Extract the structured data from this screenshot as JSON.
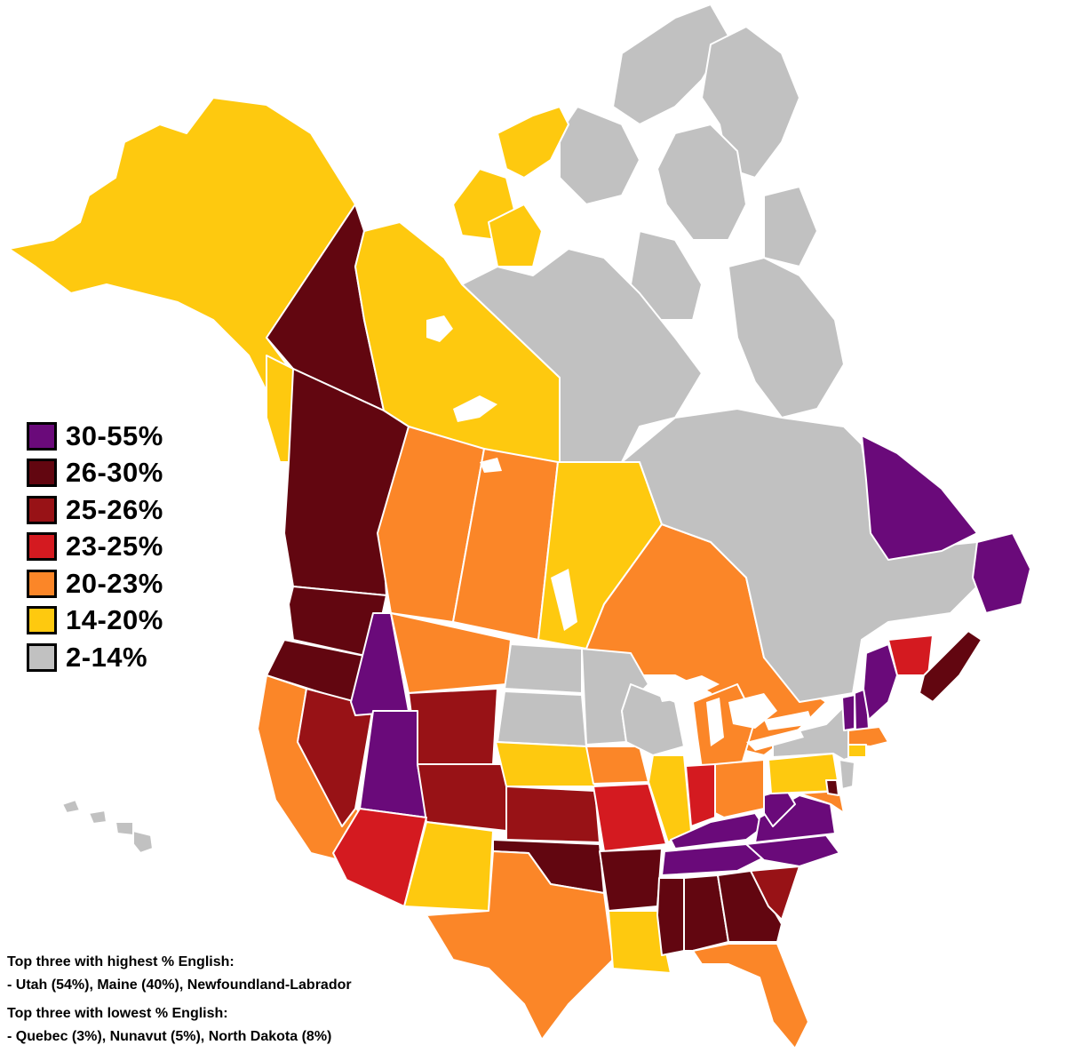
{
  "legend": {
    "items": [
      {
        "label": "30-55%",
        "color": "#6a0a7a"
      },
      {
        "label": "26-30%",
        "color": "#620610"
      },
      {
        "label": "25-26%",
        "color": "#981216"
      },
      {
        "label": "23-25%",
        "color": "#d41a20"
      },
      {
        "label": "20-23%",
        "color": "#fb8628"
      },
      {
        "label": "14-20%",
        "color": "#fec90f"
      },
      {
        "label": "2-14%",
        "color": "#c1c1c1"
      }
    ]
  },
  "notes": {
    "highest_heading": "Top three with highest % English:",
    "highest_list": "- Utah (54%), Maine (40%), Newfoundland-Labrador",
    "lowest_heading": "Top three with lowest % English:",
    "lowest_list": "- Quebec (3%), Nunavut (5%), North Dakota (8%)"
  },
  "regions": [
    {
      "name": "Alaska",
      "bin": "14-20%"
    },
    {
      "name": "Yukon",
      "bin": "26-30%"
    },
    {
      "name": "Northwest Territories",
      "bin": "14-20%"
    },
    {
      "name": "Nunavut",
      "bin": "2-14%"
    },
    {
      "name": "British Columbia",
      "bin": "26-30%"
    },
    {
      "name": "Alberta",
      "bin": "20-23%"
    },
    {
      "name": "Saskatchewan",
      "bin": "20-23%"
    },
    {
      "name": "Manitoba",
      "bin": "14-20%"
    },
    {
      "name": "Ontario",
      "bin": "20-23%"
    },
    {
      "name": "Quebec",
      "bin": "2-14%"
    },
    {
      "name": "Newfoundland and Labrador",
      "bin": "30-55%"
    },
    {
      "name": "New Brunswick",
      "bin": "23-25%"
    },
    {
      "name": "Nova Scotia",
      "bin": "26-30%"
    },
    {
      "name": "Washington",
      "bin": "26-30%"
    },
    {
      "name": "Oregon",
      "bin": "26-30%"
    },
    {
      "name": "California",
      "bin": "20-23%"
    },
    {
      "name": "Nevada",
      "bin": "25-26%"
    },
    {
      "name": "Idaho",
      "bin": "30-55%"
    },
    {
      "name": "Montana",
      "bin": "20-23%"
    },
    {
      "name": "Wyoming",
      "bin": "25-26%"
    },
    {
      "name": "Utah",
      "bin": "30-55%"
    },
    {
      "name": "Arizona",
      "bin": "23-25%"
    },
    {
      "name": "Colorado",
      "bin": "25-26%"
    },
    {
      "name": "New Mexico",
      "bin": "14-20%"
    },
    {
      "name": "North Dakota",
      "bin": "2-14%"
    },
    {
      "name": "South Dakota",
      "bin": "2-14%"
    },
    {
      "name": "Nebraska",
      "bin": "14-20%"
    },
    {
      "name": "Kansas",
      "bin": "25-26%"
    },
    {
      "name": "Oklahoma",
      "bin": "26-30%"
    },
    {
      "name": "Texas",
      "bin": "20-23%"
    },
    {
      "name": "Minnesota",
      "bin": "2-14%"
    },
    {
      "name": "Iowa",
      "bin": "20-23%"
    },
    {
      "name": "Missouri",
      "bin": "23-25%"
    },
    {
      "name": "Arkansas",
      "bin": "26-30%"
    },
    {
      "name": "Louisiana",
      "bin": "14-20%"
    },
    {
      "name": "Wisconsin",
      "bin": "2-14%"
    },
    {
      "name": "Illinois",
      "bin": "14-20%"
    },
    {
      "name": "Michigan",
      "bin": "20-23%"
    },
    {
      "name": "Indiana",
      "bin": "23-25%"
    },
    {
      "name": "Ohio",
      "bin": "20-23%"
    },
    {
      "name": "Kentucky",
      "bin": "30-55%"
    },
    {
      "name": "Tennessee",
      "bin": "30-55%"
    },
    {
      "name": "Mississippi",
      "bin": "26-30%"
    },
    {
      "name": "Alabama",
      "bin": "26-30%"
    },
    {
      "name": "Georgia",
      "bin": "26-30%"
    },
    {
      "name": "Florida",
      "bin": "20-23%"
    },
    {
      "name": "South Carolina",
      "bin": "25-26%"
    },
    {
      "name": "North Carolina",
      "bin": "30-55%"
    },
    {
      "name": "Virginia",
      "bin": "30-55%"
    },
    {
      "name": "West Virginia",
      "bin": "30-55%"
    },
    {
      "name": "Pennsylvania",
      "bin": "14-20%"
    },
    {
      "name": "New York",
      "bin": "2-14%"
    },
    {
      "name": "Maryland",
      "bin": "20-23%"
    },
    {
      "name": "Delaware",
      "bin": "26-30%"
    },
    {
      "name": "New Jersey",
      "bin": "2-14%"
    },
    {
      "name": "Connecticut",
      "bin": "14-20%"
    },
    {
      "name": "Massachusetts",
      "bin": "20-23%"
    },
    {
      "name": "Vermont",
      "bin": "30-55%"
    },
    {
      "name": "New Hampshire",
      "bin": "30-55%"
    },
    {
      "name": "Maine",
      "bin": "30-55%"
    },
    {
      "name": "Hawaii",
      "bin": "2-14%"
    }
  ]
}
